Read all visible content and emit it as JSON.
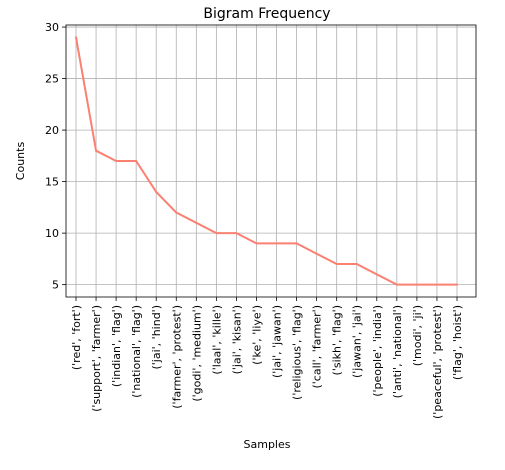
{
  "chart_data": {
    "type": "line",
    "title": "Bigram Frequency",
    "xlabel": "Samples",
    "ylabel": "Counts",
    "categories": [
      "('red', 'fort')",
      "('support', 'farmer')",
      "('indian', 'flag')",
      "('national', 'flag')",
      "('jai', 'hind')",
      "('farmer', 'protest')",
      "('godi', 'medium')",
      "('laal', 'kille')",
      "('jai', 'kisan')",
      "('ke', 'liye')",
      "('jai', 'jawan')",
      "('religious', 'flag')",
      "('call', 'farmer')",
      "('sikh', 'flag')",
      "('jawan', 'jai')",
      "('people', 'india')",
      "('anti', 'national')",
      "('modi', 'ji')",
      "('peaceful', 'protest')",
      "('flag', 'hoist')"
    ],
    "values": [
      29,
      18,
      17,
      17,
      14,
      12,
      11,
      10,
      10,
      9,
      9,
      9,
      8,
      7,
      7,
      6,
      5,
      5,
      5,
      5
    ],
    "ylim": [
      3.8,
      30.2
    ],
    "yticks": [
      5,
      10,
      15,
      20,
      25,
      30
    ],
    "grid": true,
    "line_color": "#fa8072"
  }
}
